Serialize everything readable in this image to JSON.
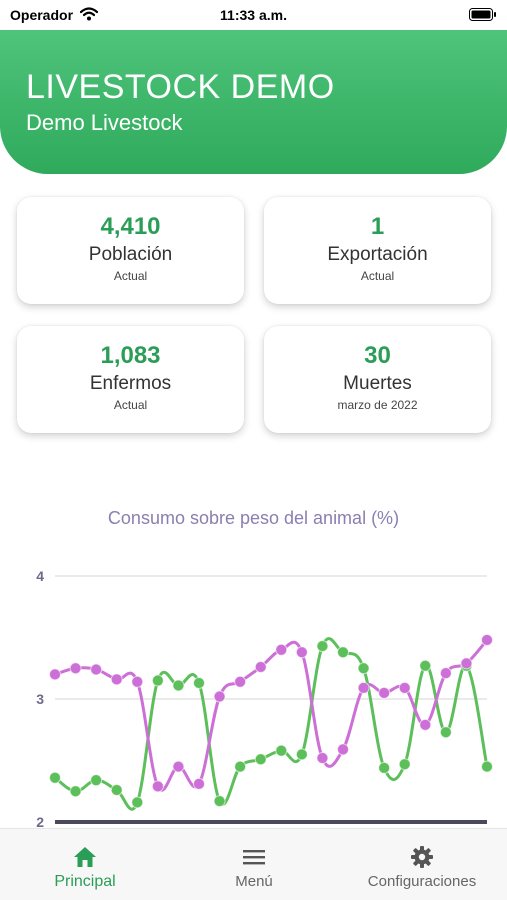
{
  "status_bar": {
    "carrier": "Operador",
    "time": "11:33 a.m."
  },
  "header": {
    "title": "LIVESTOCK DEMO",
    "subtitle": "Demo Livestock",
    "color": "#3cb86a"
  },
  "cards": [
    {
      "value": "4,410",
      "label": "Población",
      "sub": "Actual"
    },
    {
      "value": "1",
      "label": "Exportación",
      "sub": "Actual"
    },
    {
      "value": "1,083",
      "label": "Enfermos",
      "sub": "Actual"
    },
    {
      "value": "30",
      "label": "Muertes",
      "sub": "marzo de 2022"
    }
  ],
  "chart": {
    "title": "Consumo sobre peso del animal (%)"
  },
  "chart_data": {
    "type": "line",
    "title": "Consumo sobre peso del animal (%)",
    "ylim": [
      2,
      4
    ],
    "yticks": [
      "4",
      "3",
      "2"
    ],
    "grid": true,
    "series": [
      {
        "color": "#5cbf5a",
        "values": [
          2.36,
          2.25,
          2.34,
          2.26,
          2.16,
          3.15,
          3.11,
          3.13,
          2.17,
          2.45,
          2.51,
          2.58,
          2.55,
          3.43,
          3.38,
          3.25,
          2.44,
          2.47,
          3.27,
          2.73,
          3.27,
          2.45
        ]
      },
      {
        "color": "#cc6fd6",
        "values": [
          3.2,
          3.25,
          3.24,
          3.16,
          3.14,
          2.29,
          2.45,
          2.31,
          3.02,
          3.14,
          3.26,
          3.4,
          3.38,
          2.52,
          2.59,
          3.09,
          3.05,
          3.09,
          2.79,
          3.21,
          3.29,
          3.48
        ]
      }
    ]
  },
  "tabs": [
    {
      "label": "Principal",
      "icon": "home-icon",
      "active": true
    },
    {
      "label": "Menú",
      "icon": "menu-icon",
      "active": false
    },
    {
      "label": "Configuraciones",
      "icon": "gear-icon",
      "active": false
    }
  ],
  "colors": {
    "accent": "#2a9d57",
    "chart_title": "#8a7fb0",
    "axis": "#4a4a5e"
  }
}
